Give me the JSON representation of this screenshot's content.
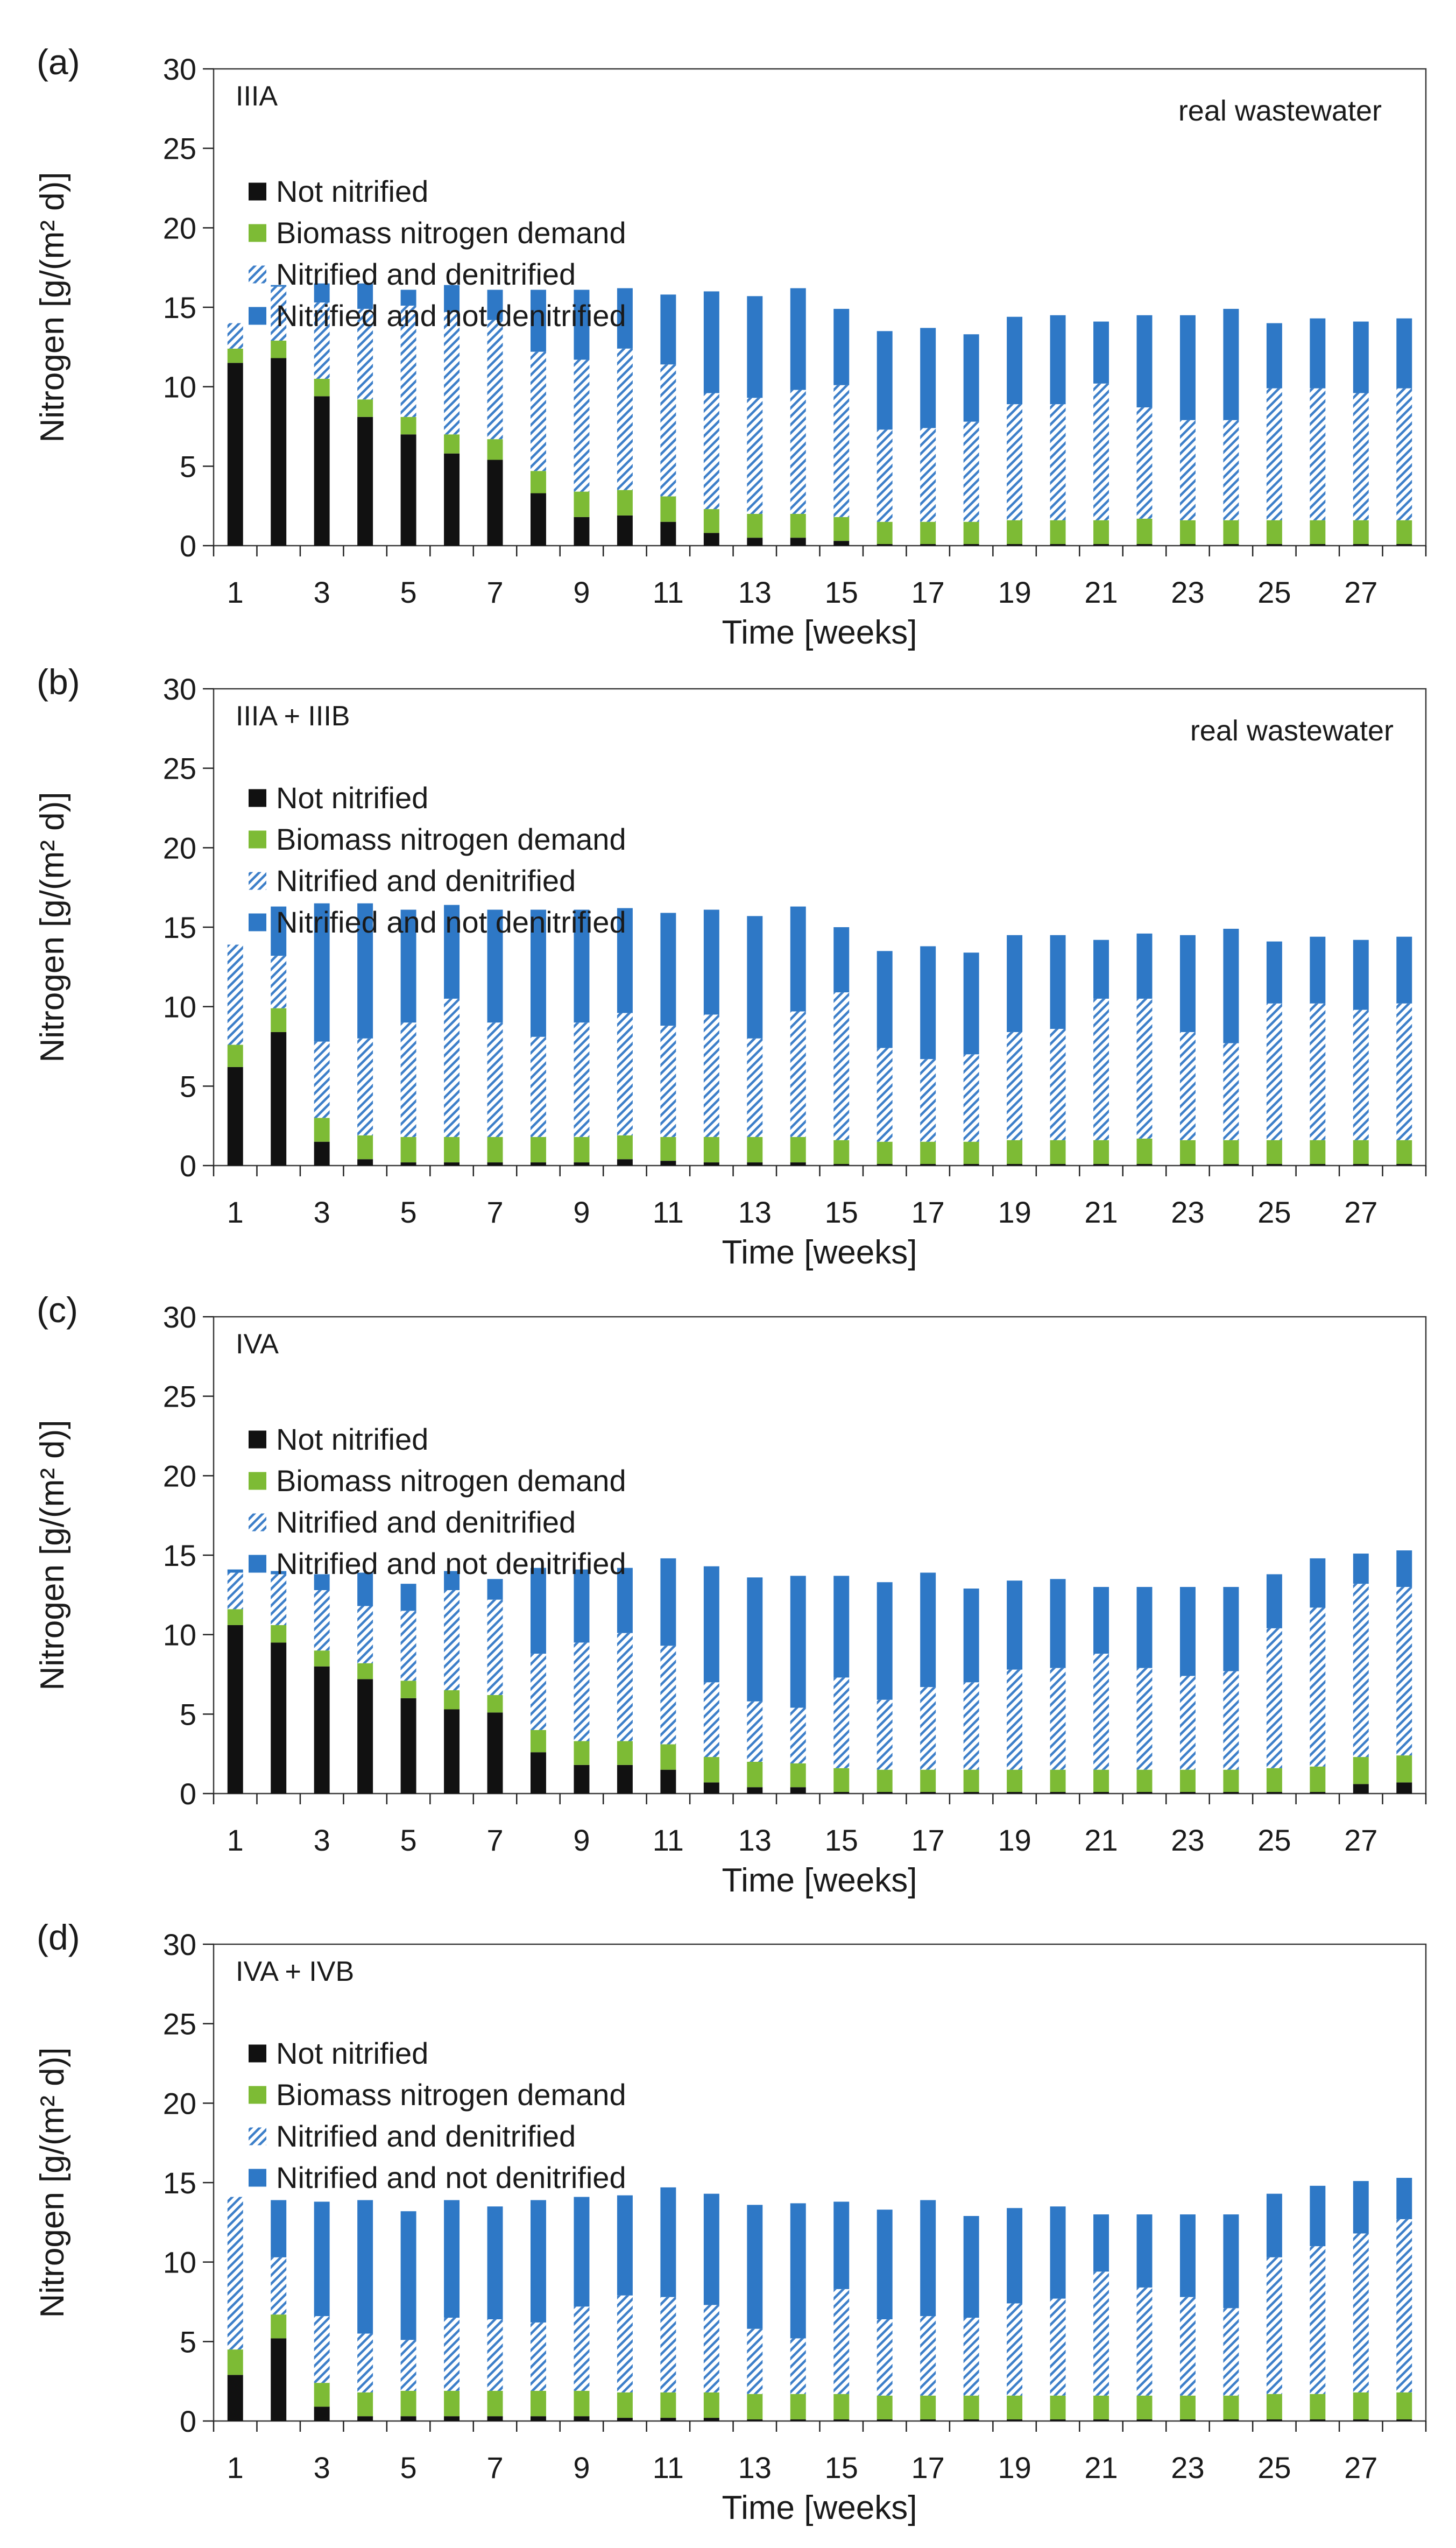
{
  "colors": {
    "not_nitrified": "#111111",
    "biomass": "#7dbb35",
    "hatched": "#3d7fc9",
    "not_denitrified": "#2e78c6",
    "axis": "#222222"
  },
  "chart_data": [
    {
      "type": "bar",
      "stacked": true,
      "panel_label": "(a)",
      "title": "IIIA",
      "annotation": "real wastewater",
      "xlabel": "Time [weeks]",
      "ylabel": "Nitrogen [g/(m² d)]",
      "ylim": [
        0,
        30
      ],
      "yticks": [
        0,
        5,
        10,
        15,
        20,
        25,
        30
      ],
      "x": [
        1,
        2,
        3,
        4,
        5,
        6,
        7,
        8,
        9,
        10,
        11,
        12,
        13,
        14,
        15,
        16,
        17,
        18,
        19,
        20,
        21,
        22,
        23,
        24,
        25,
        26,
        27,
        28
      ],
      "xtick_labels": [
        "1",
        "3",
        "5",
        "7",
        "9",
        "11",
        "13",
        "15",
        "17",
        "19",
        "21",
        "23",
        "25",
        "27"
      ],
      "series": [
        {
          "name": "Not nitrified",
          "values": [
            11.5,
            11.8,
            9.4,
            8.1,
            7.0,
            5.8,
            5.4,
            3.3,
            1.8,
            1.9,
            1.5,
            0.8,
            0.5,
            0.5,
            0.3,
            0.1,
            0.1,
            0.1,
            0.1,
            0.1,
            0.1,
            0.1,
            0.1,
            0.1,
            0.1,
            0.1,
            0.1,
            0.1
          ]
        },
        {
          "name": "Biomass nitrogen demand",
          "values": [
            0.9,
            1.1,
            1.1,
            1.1,
            1.1,
            1.2,
            1.3,
            1.4,
            1.6,
            1.6,
            1.6,
            1.5,
            1.5,
            1.5,
            1.5,
            1.4,
            1.4,
            1.4,
            1.5,
            1.5,
            1.5,
            1.6,
            1.5,
            1.5,
            1.5,
            1.5,
            1.5,
            1.5
          ]
        },
        {
          "name": "Nitrified and denitrified",
          "values": [
            1.6,
            3.4,
            4.8,
            5.7,
            7.0,
            7.7,
            7.5,
            7.5,
            8.3,
            8.9,
            8.3,
            7.3,
            7.3,
            7.8,
            8.3,
            5.8,
            5.9,
            6.3,
            7.3,
            7.3,
            8.6,
            7.0,
            6.3,
            6.3,
            8.3,
            8.3,
            8.0,
            8.3
          ]
        },
        {
          "name": "Nitrified and not denitrified",
          "values": [
            0.0,
            0.1,
            1.2,
            1.6,
            1.0,
            1.7,
            1.9,
            3.9,
            4.4,
            3.8,
            4.4,
            6.4,
            6.4,
            6.4,
            4.8,
            6.2,
            6.3,
            5.5,
            5.5,
            5.6,
            3.9,
            5.8,
            6.6,
            7.0,
            4.1,
            4.4,
            4.5,
            4.4
          ]
        }
      ]
    },
    {
      "type": "bar",
      "stacked": true,
      "panel_label": "(b)",
      "title": "IIIA + IIIB",
      "annotation": "real wastewater",
      "xlabel": "Time [weeks]",
      "ylabel": "Nitrogen [g/(m² d)]",
      "ylim": [
        0,
        30
      ],
      "yticks": [
        0,
        5,
        10,
        15,
        20,
        25,
        30
      ],
      "x": [
        1,
        2,
        3,
        4,
        5,
        6,
        7,
        8,
        9,
        10,
        11,
        12,
        13,
        14,
        15,
        16,
        17,
        18,
        19,
        20,
        21,
        22,
        23,
        24,
        25,
        26,
        27,
        28
      ],
      "xtick_labels": [
        "1",
        "3",
        "5",
        "7",
        "9",
        "11",
        "13",
        "15",
        "17",
        "19",
        "21",
        "23",
        "25",
        "27"
      ],
      "series": [
        {
          "name": "Not nitrified",
          "values": [
            6.2,
            8.4,
            1.5,
            0.4,
            0.2,
            0.2,
            0.2,
            0.2,
            0.2,
            0.4,
            0.3,
            0.2,
            0.2,
            0.2,
            0.1,
            0.1,
            0.1,
            0.1,
            0.1,
            0.1,
            0.1,
            0.1,
            0.1,
            0.1,
            0.1,
            0.1,
            0.1,
            0.1
          ]
        },
        {
          "name": "Biomass nitrogen demand",
          "values": [
            1.4,
            1.5,
            1.5,
            1.5,
            1.6,
            1.6,
            1.6,
            1.6,
            1.6,
            1.5,
            1.5,
            1.6,
            1.6,
            1.6,
            1.5,
            1.4,
            1.4,
            1.4,
            1.5,
            1.5,
            1.5,
            1.6,
            1.5,
            1.5,
            1.5,
            1.5,
            1.5,
            1.5
          ]
        },
        {
          "name": "Nitrified and denitrified",
          "values": [
            6.3,
            3.3,
            4.8,
            6.1,
            7.2,
            8.7,
            7.2,
            6.3,
            7.2,
            7.7,
            7.0,
            7.7,
            6.2,
            7.9,
            9.3,
            5.9,
            5.2,
            5.5,
            6.8,
            7.0,
            8.9,
            8.8,
            6.8,
            6.1,
            8.6,
            8.6,
            8.2,
            8.6
          ]
        },
        {
          "name": "Nitrified and not denitrified",
          "values": [
            0.0,
            3.1,
            8.7,
            8.5,
            7.1,
            5.9,
            7.1,
            8.0,
            7.1,
            6.6,
            7.1,
            6.6,
            7.7,
            6.6,
            4.1,
            6.1,
            7.1,
            6.4,
            6.1,
            5.9,
            3.7,
            4.1,
            6.1,
            7.2,
            3.9,
            4.2,
            4.4,
            4.2
          ]
        }
      ]
    },
    {
      "type": "bar",
      "stacked": true,
      "panel_label": "(c)",
      "title": "IVA",
      "annotation": "",
      "xlabel": "Time [weeks]",
      "ylabel": "Nitrogen [g/(m² d)]",
      "ylim": [
        0,
        30
      ],
      "yticks": [
        0,
        5,
        10,
        15,
        20,
        25,
        30
      ],
      "x": [
        1,
        2,
        3,
        4,
        5,
        6,
        7,
        8,
        9,
        10,
        11,
        12,
        13,
        14,
        15,
        16,
        17,
        18,
        19,
        20,
        21,
        22,
        23,
        24,
        25,
        26,
        27,
        28
      ],
      "xtick_labels": [
        "1",
        "3",
        "5",
        "7",
        "9",
        "11",
        "13",
        "15",
        "17",
        "19",
        "21",
        "23",
        "25",
        "27"
      ],
      "series": [
        {
          "name": "Not nitrified",
          "values": [
            10.6,
            9.5,
            8.0,
            7.2,
            6.0,
            5.3,
            5.1,
            2.6,
            1.8,
            1.8,
            1.5,
            0.7,
            0.4,
            0.4,
            0.1,
            0.1,
            0.1,
            0.1,
            0.1,
            0.1,
            0.1,
            0.1,
            0.1,
            0.1,
            0.1,
            0.1,
            0.6,
            0.7
          ]
        },
        {
          "name": "Biomass nitrogen demand",
          "values": [
            1.0,
            1.1,
            1.0,
            1.0,
            1.1,
            1.2,
            1.1,
            1.4,
            1.5,
            1.5,
            1.6,
            1.6,
            1.6,
            1.5,
            1.5,
            1.4,
            1.4,
            1.4,
            1.4,
            1.4,
            1.4,
            1.4,
            1.4,
            1.4,
            1.5,
            1.6,
            1.7,
            1.7
          ]
        },
        {
          "name": "Nitrified and denitrified",
          "values": [
            2.3,
            3.2,
            3.8,
            3.6,
            4.4,
            6.3,
            6.0,
            4.8,
            6.2,
            6.8,
            6.2,
            4.7,
            3.8,
            3.5,
            5.7,
            4.4,
            5.2,
            5.5,
            6.3,
            6.4,
            7.3,
            6.4,
            5.9,
            6.2,
            8.8,
            10.0,
            10.9,
            10.6
          ]
        },
        {
          "name": "Nitrified and not denitrified",
          "values": [
            0.2,
            0.2,
            1.0,
            2.1,
            1.7,
            1.2,
            1.3,
            5.4,
            4.6,
            4.1,
            5.5,
            7.3,
            7.8,
            8.3,
            6.4,
            7.4,
            7.2,
            5.9,
            5.6,
            5.6,
            4.2,
            5.1,
            5.6,
            5.3,
            3.4,
            3.1,
            1.9,
            2.3
          ]
        }
      ]
    },
    {
      "type": "bar",
      "stacked": true,
      "panel_label": "(d)",
      "title": "IVA + IVB",
      "annotation": "",
      "xlabel": "Time [weeks]",
      "ylabel": "Nitrogen [g/(m² d)]",
      "ylim": [
        0,
        30
      ],
      "yticks": [
        0,
        5,
        10,
        15,
        20,
        25,
        30
      ],
      "x": [
        1,
        2,
        3,
        4,
        5,
        6,
        7,
        8,
        9,
        10,
        11,
        12,
        13,
        14,
        15,
        16,
        17,
        18,
        19,
        20,
        21,
        22,
        23,
        24,
        25,
        26,
        27,
        28
      ],
      "xtick_labels": [
        "1",
        "3",
        "5",
        "7",
        "9",
        "11",
        "13",
        "15",
        "17",
        "19",
        "21",
        "23",
        "25",
        "27"
      ],
      "series": [
        {
          "name": "Not nitrified",
          "values": [
            2.9,
            5.2,
            0.9,
            0.3,
            0.3,
            0.3,
            0.3,
            0.3,
            0.3,
            0.2,
            0.2,
            0.2,
            0.1,
            0.1,
            0.1,
            0.1,
            0.1,
            0.1,
            0.1,
            0.1,
            0.1,
            0.1,
            0.1,
            0.1,
            0.1,
            0.1,
            0.1,
            0.1
          ]
        },
        {
          "name": "Biomass nitrogen demand",
          "values": [
            1.6,
            1.5,
            1.5,
            1.5,
            1.6,
            1.6,
            1.6,
            1.6,
            1.6,
            1.6,
            1.6,
            1.6,
            1.6,
            1.6,
            1.6,
            1.5,
            1.5,
            1.5,
            1.5,
            1.5,
            1.5,
            1.5,
            1.5,
            1.5,
            1.6,
            1.6,
            1.7,
            1.7
          ]
        },
        {
          "name": "Nitrified and denitrified",
          "values": [
            9.6,
            3.6,
            4.2,
            3.7,
            3.2,
            4.6,
            4.5,
            4.3,
            5.3,
            6.1,
            6.0,
            5.5,
            4.1,
            3.5,
            6.6,
            4.8,
            5.0,
            4.9,
            5.8,
            6.1,
            7.8,
            6.8,
            6.2,
            5.5,
            8.6,
            9.3,
            10.0,
            10.9
          ]
        },
        {
          "name": "Nitrified and not denitrified",
          "values": [
            0.0,
            3.6,
            7.2,
            8.4,
            8.1,
            7.4,
            7.1,
            7.7,
            6.9,
            6.3,
            6.9,
            7.0,
            7.8,
            8.5,
            5.5,
            6.9,
            7.3,
            6.4,
            6.0,
            5.8,
            3.6,
            4.6,
            5.2,
            5.9,
            4.0,
            3.8,
            3.3,
            2.6
          ]
        }
      ]
    }
  ]
}
